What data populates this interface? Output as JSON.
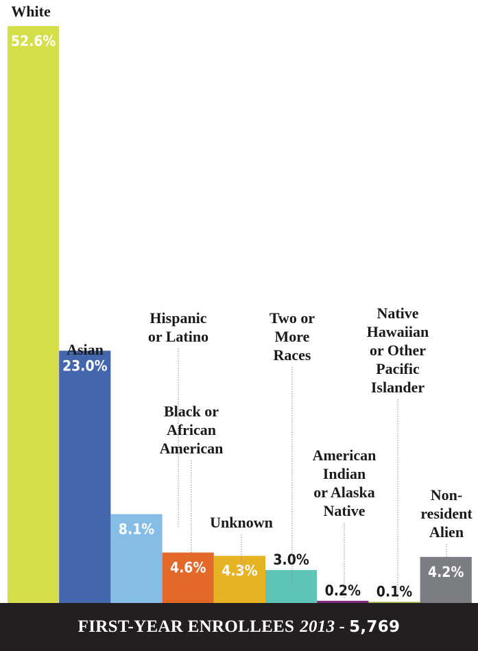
{
  "chart_data": {
    "type": "bar",
    "title": "FIRST-YEAR ENROLLEES",
    "title_year": "2013",
    "title_sep": "-",
    "title_count": "5,769",
    "unit": "%",
    "categories": [
      "White",
      "Asian",
      "Hispanic or Latino",
      "Black or African American",
      "Unknown",
      "Two or More Races",
      "American Indian or Alaska Native",
      "Native Hawaiian or Other Pacific Islander",
      "Non-resident Alien"
    ],
    "label_lines": [
      [
        "White"
      ],
      [
        "Asian"
      ],
      [
        "Hispanic",
        "or Latino"
      ],
      [
        "Black or",
        "African",
        "American"
      ],
      [
        "Unknown"
      ],
      [
        "Two or",
        "More",
        "Races"
      ],
      [
        "American",
        "Indian",
        "or Alaska",
        "Native"
      ],
      [
        "Native",
        "Hawaiian",
        "or Other",
        "Pacific",
        "Islander"
      ],
      [
        "Non-",
        "resident",
        "Alien"
      ]
    ],
    "values": [
      52.6,
      23.0,
      8.1,
      4.6,
      4.3,
      3.0,
      0.2,
      0.1,
      4.2
    ],
    "value_labels": [
      "52.6%",
      "23.0%",
      "8.1%",
      "4.6%",
      "4.3%",
      "3.0%",
      "0.2%",
      "0.1%",
      "4.2%"
    ],
    "colors": [
      "#d4df4a",
      "#4366ad",
      "#86bde6",
      "#e3692a",
      "#e5b323",
      "#5ec4b8",
      "#7d2a7d",
      "#9ab23a",
      "#7b7d80"
    ],
    "ylim": [
      0,
      52.6
    ],
    "grid": false,
    "legend": "none"
  }
}
